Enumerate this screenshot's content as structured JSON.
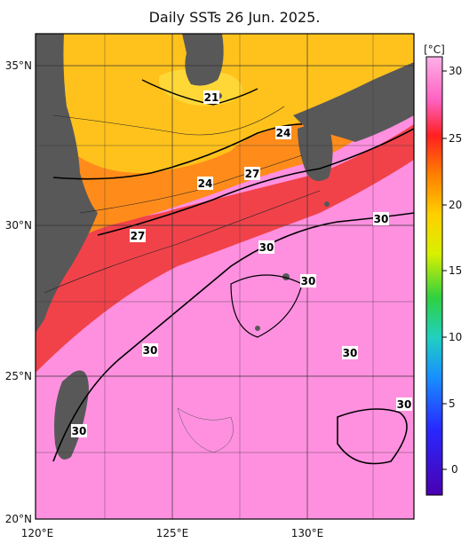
{
  "title": "Daily SSTs 26 Jun. 2025.",
  "colorbar": {
    "unit_label": "[°C]",
    "ticks": [
      "30",
      "25",
      "20",
      "15",
      "10",
      "5",
      "0"
    ],
    "colors": [
      "#ff9ad8",
      "#ff2828",
      "#ff7a00",
      "#ffd000",
      "#c8f000",
      "#2ad04a",
      "#1ec8d0",
      "#1a8cff",
      "#2a2aff",
      "#4400b0"
    ]
  },
  "axes": {
    "lat_labels": [
      "35°N",
      "30°N",
      "25°N",
      "20°N"
    ],
    "lon_labels": [
      "120°E",
      "125°E",
      "130°E"
    ]
  },
  "isotherm_labels": [
    "21",
    "24",
    "24",
    "27",
    "27",
    "30",
    "30",
    "30",
    "30",
    "30",
    "30",
    "30"
  ],
  "colors": {
    "land": "#585858",
    "warm_pink": "#ff8fde",
    "red": "#ee2222",
    "orange": "#ff9020",
    "yellow": "#ffc018"
  }
}
